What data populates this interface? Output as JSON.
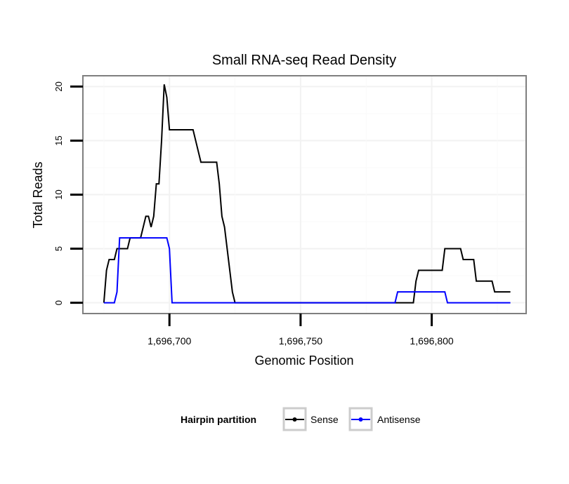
{
  "chart_data": {
    "type": "line",
    "title": "Small RNA-seq Read Density",
    "xlabel": "Genomic Position",
    "ylabel": "Total Reads",
    "xlim": [
      1696667,
      1696836
    ],
    "ylim": [
      -1,
      21
    ],
    "x_ticks": [
      1696700,
      1696750,
      1696800
    ],
    "x_tick_labels": [
      "1,696,700",
      "1,696,750",
      "1,696,800"
    ],
    "y_ticks": [
      0,
      5,
      10,
      15,
      20
    ],
    "y_tick_labels": [
      "0",
      "5",
      "10",
      "15",
      "20"
    ],
    "grid": true,
    "legend": {
      "title": "Hairpin partition",
      "position": "bottom",
      "entries": [
        "Sense",
        "Antisense"
      ]
    },
    "series": [
      {
        "name": "Sense",
        "color": "#000000",
        "points": [
          [
            1696675,
            0
          ],
          [
            1696676,
            3
          ],
          [
            1696677,
            4
          ],
          [
            1696678,
            4
          ],
          [
            1696679,
            4
          ],
          [
            1696680,
            5
          ],
          [
            1696684,
            5
          ],
          [
            1696685,
            6
          ],
          [
            1696689,
            6
          ],
          [
            1696690,
            7
          ],
          [
            1696691,
            8
          ],
          [
            1696692,
            8
          ],
          [
            1696693,
            7
          ],
          [
            1696694,
            8
          ],
          [
            1696695,
            11
          ],
          [
            1696696,
            11
          ],
          [
            1696697,
            15
          ],
          [
            1696698,
            20.2
          ],
          [
            1696699,
            19
          ],
          [
            1696700,
            16
          ],
          [
            1696709,
            16
          ],
          [
            1696710,
            15
          ],
          [
            1696712,
            13
          ],
          [
            1696718,
            13
          ],
          [
            1696719,
            11
          ],
          [
            1696720,
            8
          ],
          [
            1696721,
            7
          ],
          [
            1696724,
            1
          ],
          [
            1696725,
            0
          ],
          [
            1696793,
            0
          ],
          [
            1696794,
            2
          ],
          [
            1696795,
            3
          ],
          [
            1696804,
            3
          ],
          [
            1696805,
            5
          ],
          [
            1696811,
            5
          ],
          [
            1696812,
            4
          ],
          [
            1696816,
            4
          ],
          [
            1696817,
            2
          ],
          [
            1696823,
            2
          ],
          [
            1696824,
            1
          ],
          [
            1696830,
            1
          ]
        ]
      },
      {
        "name": "Antisense",
        "color": "#0000ff",
        "points": [
          [
            1696675,
            0
          ],
          [
            1696679,
            0
          ],
          [
            1696680,
            1
          ],
          [
            1696681,
            6
          ],
          [
            1696699,
            6
          ],
          [
            1696700,
            5
          ],
          [
            1696701,
            0
          ],
          [
            1696786,
            0
          ],
          [
            1696787,
            1
          ],
          [
            1696805,
            1
          ],
          [
            1696806,
            0
          ],
          [
            1696830,
            0
          ]
        ]
      }
    ]
  }
}
